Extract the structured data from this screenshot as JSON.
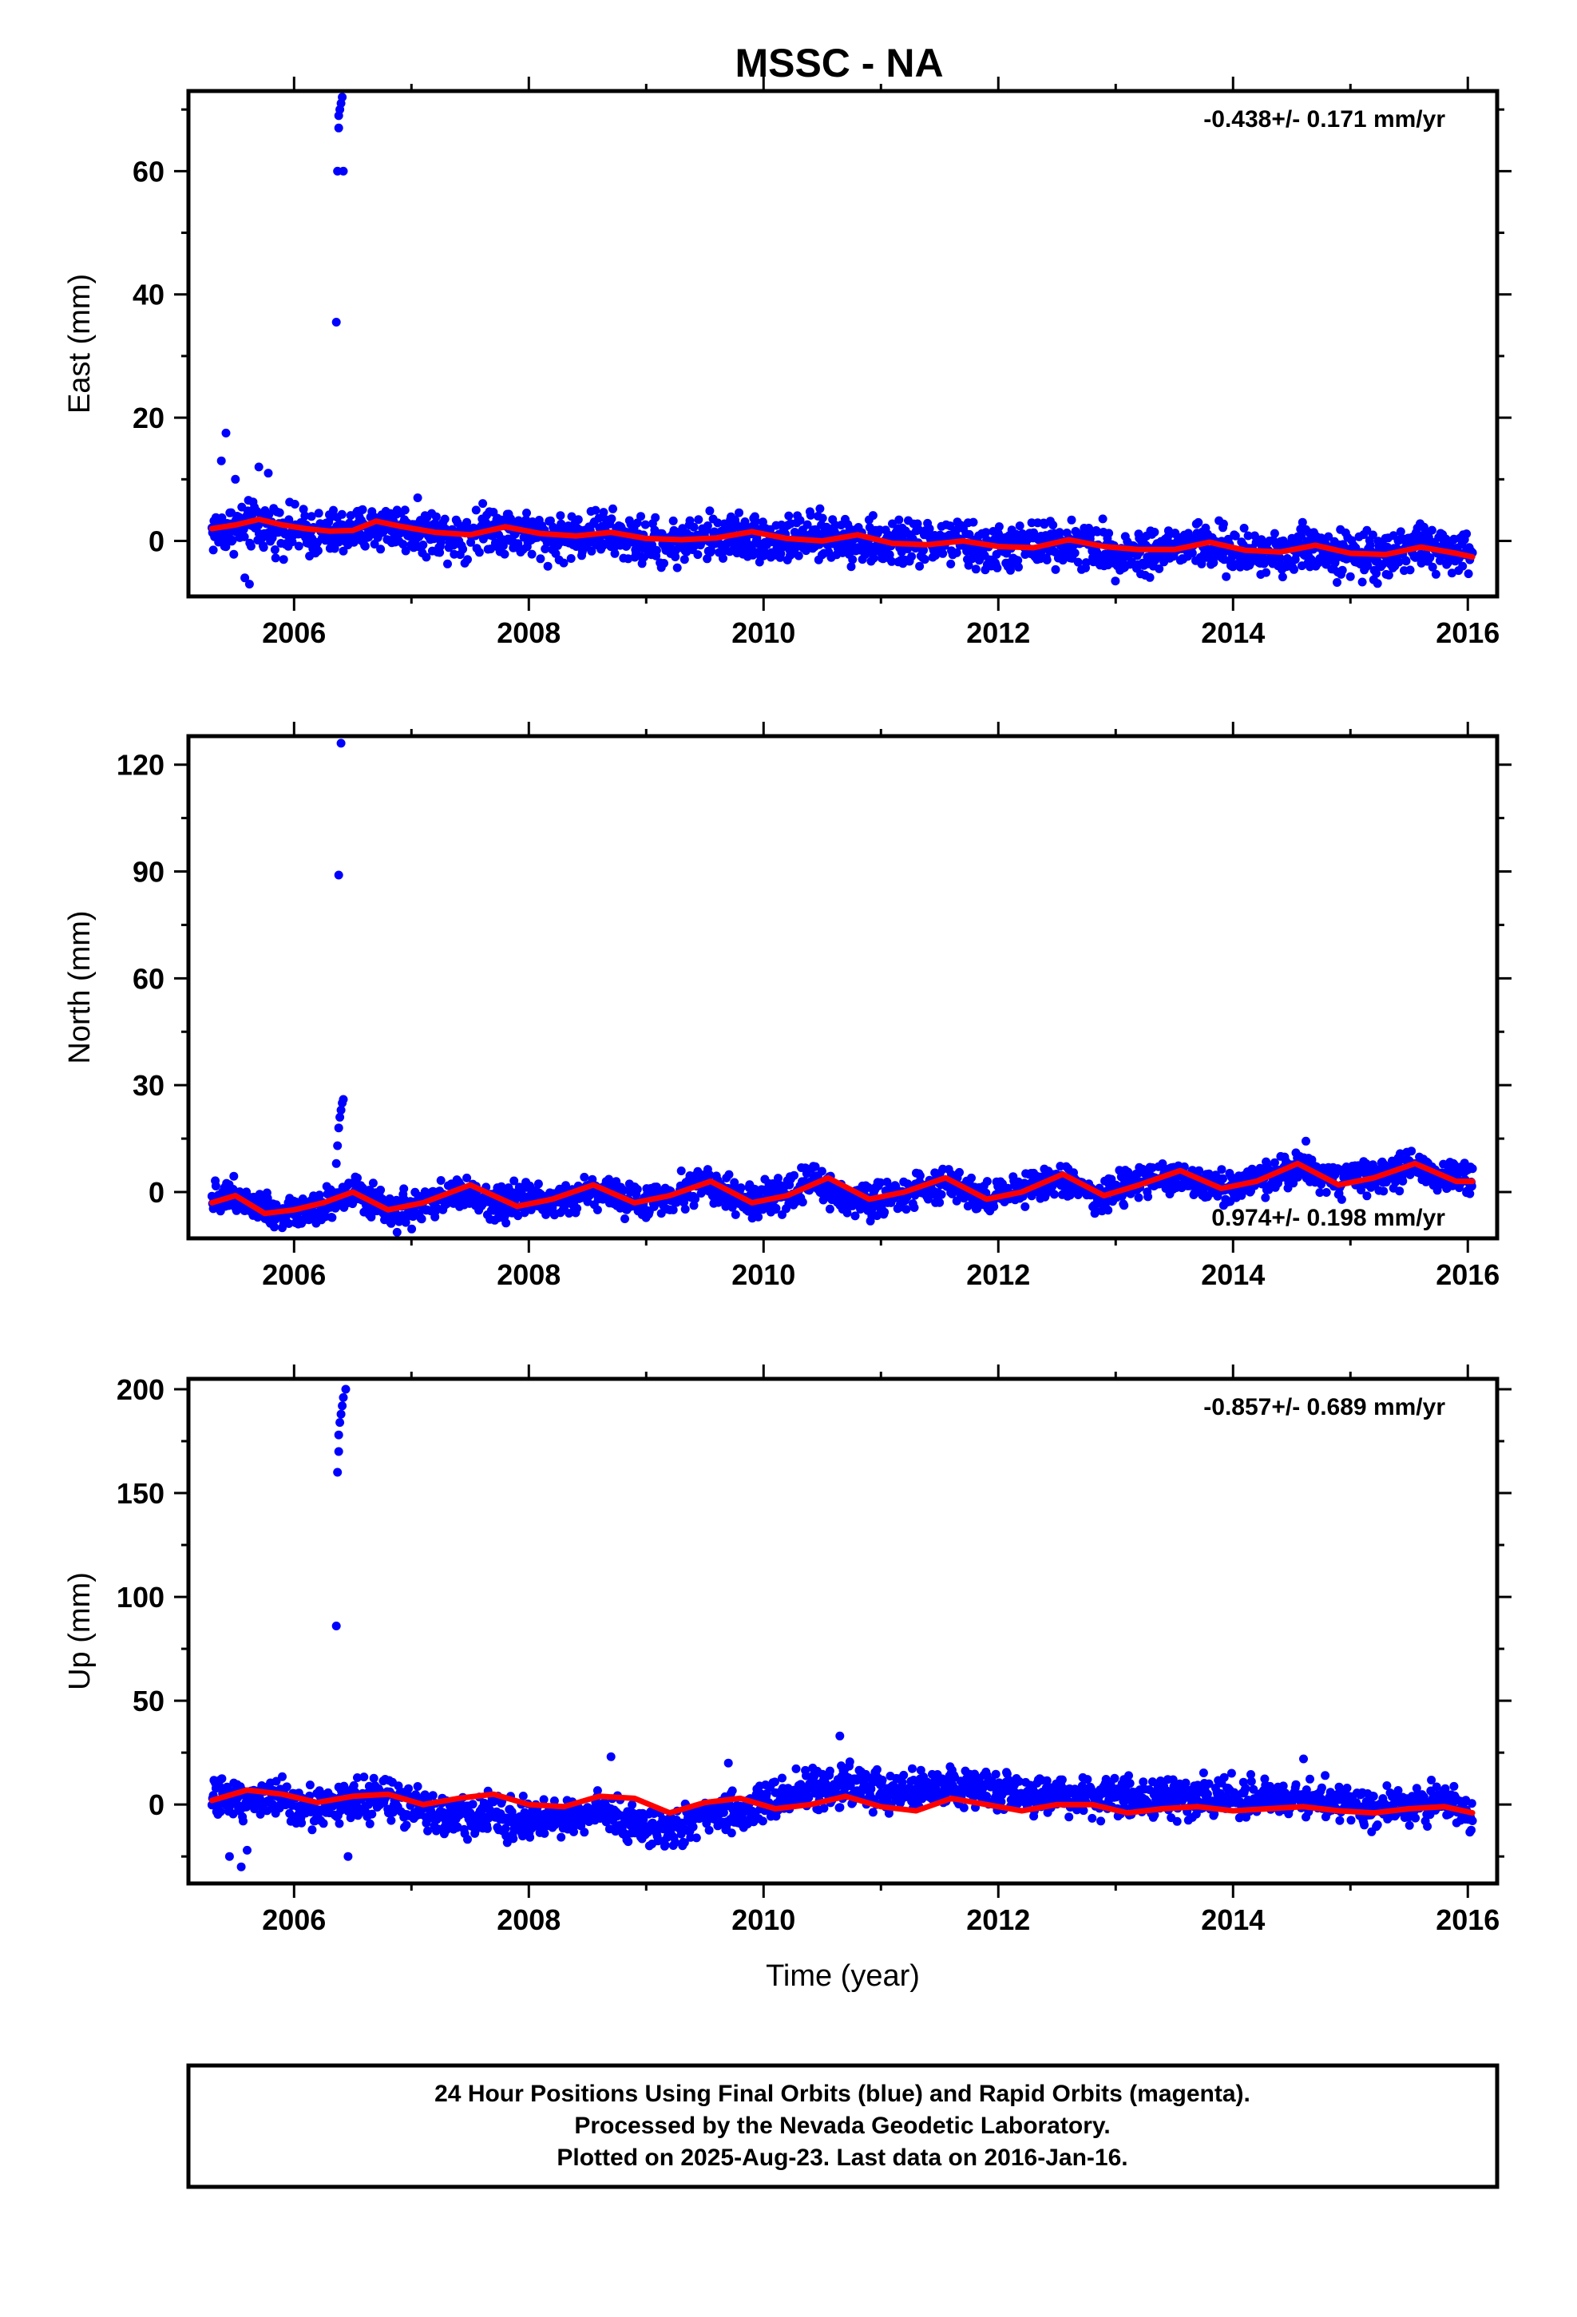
{
  "title": "MSSC - NA",
  "footer": {
    "lines": [
      "24 Hour Positions Using Final Orbits (blue) and Rapid Orbits (magenta).",
      "Processed by the Nevada Geodetic Laboratory.",
      "Plotted on 2025-Aug-23. Last data on 2016-Jan-16."
    ]
  },
  "colors": {
    "final_orbits": "#0000ff",
    "model_fit": "#ff0000",
    "frame": "#000000"
  },
  "chart_data": [
    {
      "id": "east",
      "type": "scatter",
      "ylabel": "East (mm)",
      "xlabel": "",
      "rate": "-0.438+/- 0.171 mm/yr",
      "rate_position": "top-right",
      "xlim": [
        2005.1,
        2016.25
      ],
      "ylim": [
        -9,
        73
      ],
      "x_ticks": [
        2006,
        2008,
        2010,
        2012,
        2014,
        2016
      ],
      "y_ticks": [
        0,
        20,
        40,
        60
      ],
      "grid": false,
      "series": [
        {
          "kind": "points",
          "color": "#0000ff",
          "x": [
            2005.3,
            2005.6,
            2005.9,
            2006.2,
            2006.5,
            2006.8,
            2007.1,
            2007.4,
            2007.7,
            2008.0,
            2008.3,
            2008.6,
            2008.9,
            2009.2,
            2009.5,
            2009.8,
            2010.1,
            2010.4,
            2010.7,
            2011.0,
            2011.3,
            2011.6,
            2011.9,
            2012.2,
            2012.5,
            2012.8,
            2013.1,
            2013.4,
            2013.7,
            2014.0,
            2014.3,
            2014.6,
            2014.9,
            2015.2,
            2015.5,
            2015.8,
            2016.04
          ],
          "y": [
            1.5,
            2.5,
            2.0,
            1.0,
            1.5,
            2.5,
            1.5,
            1.0,
            2.5,
            1.0,
            0.5,
            1.5,
            0.0,
            -0.5,
            0.5,
            1.0,
            0.0,
            0.5,
            0.5,
            -0.5,
            -0.5,
            0.0,
            -1.5,
            -1.0,
            0.0,
            -1.0,
            -2.0,
            -1.5,
            -0.5,
            -2.0,
            -2.0,
            -1.0,
            -2.0,
            -2.5,
            -1.0,
            -1.5,
            -3.0
          ],
          "spread": 5.5
        },
        {
          "kind": "outliers",
          "color": "#0000ff",
          "x": [
            2005.38,
            2005.42,
            2005.5,
            2005.58,
            2005.62,
            2005.7,
            2005.78,
            2006.36,
            2006.37,
            2006.38,
            2006.38,
            2006.39,
            2006.4,
            2006.41,
            2006.42
          ],
          "y": [
            13,
            17.5,
            10,
            -6,
            -7,
            12,
            11,
            35.5,
            60,
            67,
            69,
            70,
            71,
            72,
            60
          ]
        },
        {
          "kind": "line",
          "color": "#ff0000",
          "x": [
            2005.3,
            2005.5,
            2005.7,
            2005.9,
            2006.1,
            2006.3,
            2006.5,
            2006.7,
            2006.9,
            2007.2,
            2007.5,
            2007.8,
            2008.1,
            2008.4,
            2008.7,
            2009.0,
            2009.3,
            2009.6,
            2009.9,
            2010.2,
            2010.5,
            2010.8,
            2011.1,
            2011.4,
            2011.7,
            2012.0,
            2012.3,
            2012.6,
            2012.9,
            2013.2,
            2013.5,
            2013.8,
            2014.1,
            2014.4,
            2014.7,
            2015.0,
            2015.3,
            2015.6,
            2015.9,
            2016.04
          ],
          "y": [
            2.0,
            2.6,
            3.5,
            2.6,
            2.0,
            1.6,
            1.7,
            3.2,
            2.4,
            1.4,
            1.0,
            2.3,
            1.2,
            0.8,
            1.4,
            0.4,
            0.2,
            0.5,
            1.5,
            0.4,
            0.0,
            1.0,
            -0.4,
            -0.6,
            0.0,
            -0.9,
            -1.1,
            0.2,
            -0.9,
            -1.4,
            -1.4,
            -0.2,
            -1.5,
            -1.8,
            -0.7,
            -2.0,
            -2.2,
            -1.0,
            -2.0,
            -2.6
          ]
        }
      ]
    },
    {
      "id": "north",
      "type": "scatter",
      "ylabel": "North (mm)",
      "xlabel": "",
      "rate": "0.974+/- 0.198 mm/yr",
      "rate_position": "bottom-right",
      "xlim": [
        2005.1,
        2016.25
      ],
      "ylim": [
        -13,
        128
      ],
      "x_ticks": [
        2006,
        2008,
        2010,
        2012,
        2014,
        2016
      ],
      "y_ticks": [
        0,
        30,
        60,
        90,
        120
      ],
      "grid": false,
      "series": [
        {
          "kind": "points",
          "color": "#0000ff",
          "x": [
            2005.3,
            2005.6,
            2005.9,
            2006.2,
            2006.5,
            2006.8,
            2007.1,
            2007.4,
            2007.7,
            2008.0,
            2008.3,
            2008.6,
            2008.9,
            2009.2,
            2009.5,
            2009.8,
            2010.1,
            2010.4,
            2010.7,
            2011.0,
            2011.3,
            2011.6,
            2011.9,
            2012.2,
            2012.5,
            2012.8,
            2013.1,
            2013.4,
            2013.7,
            2014.0,
            2014.3,
            2014.6,
            2014.9,
            2015.2,
            2015.5,
            2015.8,
            2016.04
          ],
          "y": [
            -1,
            -2,
            -6,
            -4,
            0,
            -6,
            -4,
            0,
            -3,
            -2,
            -2,
            1,
            -3,
            -1,
            3,
            -3,
            -2,
            3,
            -2,
            -2,
            1,
            2,
            -2,
            1,
            4,
            -1,
            1,
            5,
            2,
            1,
            4,
            8,
            3,
            4,
            8,
            4,
            4
          ],
          "spread": 7
        },
        {
          "kind": "outliers",
          "color": "#0000ff",
          "x": [
            2006.36,
            2006.37,
            2006.38,
            2006.39,
            2006.4,
            2006.41,
            2006.42,
            2006.38,
            2006.4
          ],
          "y": [
            8,
            13,
            18,
            21,
            23,
            25,
            26,
            89,
            126
          ]
        },
        {
          "kind": "line",
          "color": "#ff0000",
          "x": [
            2005.3,
            2005.5,
            2005.75,
            2006.0,
            2006.25,
            2006.5,
            2006.8,
            2007.1,
            2007.5,
            2007.9,
            2008.2,
            2008.55,
            2008.9,
            2009.2,
            2009.55,
            2009.9,
            2010.2,
            2010.55,
            2010.9,
            2011.2,
            2011.55,
            2011.9,
            2012.2,
            2012.55,
            2012.9,
            2013.2,
            2013.55,
            2013.9,
            2014.2,
            2014.55,
            2014.9,
            2015.2,
            2015.55,
            2015.9,
            2016.04
          ],
          "y": [
            -3,
            -1,
            -6,
            -5,
            -3,
            0,
            -5,
            -3,
            2,
            -4,
            -2,
            2,
            -3,
            -1,
            3,
            -3,
            -1,
            4,
            -2,
            0,
            4,
            -2,
            0,
            5,
            -1,
            2,
            6,
            1,
            3,
            8,
            2,
            4,
            8,
            3,
            3
          ]
        }
      ]
    },
    {
      "id": "up",
      "type": "scatter",
      "ylabel": "Up (mm)",
      "xlabel": "Time (year)",
      "rate": "-0.857+/- 0.689 mm/yr",
      "rate_position": "top-right",
      "xlim": [
        2005.1,
        2016.25
      ],
      "ylim": [
        -38,
        205
      ],
      "x_ticks": [
        2006,
        2008,
        2010,
        2012,
        2014,
        2016
      ],
      "y_ticks": [
        0,
        50,
        100,
        150,
        200
      ],
      "grid": false,
      "series": [
        {
          "kind": "points",
          "color": "#0000ff",
          "x": [
            2005.3,
            2005.6,
            2005.9,
            2006.2,
            2006.5,
            2006.8,
            2007.1,
            2007.4,
            2007.7,
            2008.0,
            2008.3,
            2008.6,
            2008.9,
            2009.2,
            2009.5,
            2009.8,
            2010.1,
            2010.4,
            2010.7,
            2011.0,
            2011.3,
            2011.6,
            2011.9,
            2012.2,
            2012.5,
            2012.8,
            2013.1,
            2013.4,
            2013.7,
            2014.0,
            2014.3,
            2014.6,
            2014.9,
            2015.2,
            2015.5,
            2015.8,
            2016.04
          ],
          "y": [
            2,
            4,
            2,
            -2,
            2,
            3,
            -4,
            -6,
            -5,
            -8,
            -6,
            -3,
            -10,
            -12,
            -6,
            -4,
            2,
            8,
            10,
            6,
            7,
            9,
            7,
            5,
            5,
            4,
            2,
            3,
            4,
            3,
            4,
            3,
            2,
            -2,
            0,
            2,
            -6
          ],
          "spread": 14
        },
        {
          "kind": "outliers",
          "color": "#0000ff",
          "x": [
            2005.45,
            2005.55,
            2005.6,
            2006.36,
            2006.37,
            2006.38,
            2006.38,
            2006.39,
            2006.4,
            2006.41,
            2006.42,
            2006.44,
            2006.46,
            2008.7,
            2010.65,
            2009.7,
            2014.6
          ],
          "y": [
            -25,
            -30,
            -22,
            86,
            160,
            170,
            178,
            184,
            188,
            192,
            196,
            200,
            -25,
            23,
            33,
            20,
            22
          ]
        },
        {
          "kind": "line",
          "color": "#ff0000",
          "x": [
            2005.3,
            2005.6,
            2005.9,
            2006.2,
            2006.5,
            2006.8,
            2007.1,
            2007.4,
            2007.7,
            2008.0,
            2008.3,
            2008.6,
            2008.9,
            2009.2,
            2009.5,
            2009.8,
            2010.1,
            2010.4,
            2010.7,
            2011.0,
            2011.3,
            2011.6,
            2011.9,
            2012.2,
            2012.5,
            2012.8,
            2013.1,
            2013.4,
            2013.7,
            2014.0,
            2014.3,
            2014.6,
            2014.9,
            2015.2,
            2015.5,
            2015.8,
            2016.04
          ],
          "y": [
            2,
            7,
            5,
            1,
            4,
            5,
            0,
            3,
            5,
            0,
            -1,
            4,
            3,
            -4,
            1,
            3,
            -2,
            0,
            4,
            -1,
            -3,
            3,
            0,
            -3,
            0,
            0,
            -4,
            -2,
            -1,
            -3,
            -2,
            -1,
            -3,
            -4,
            -2,
            -1,
            -4
          ]
        }
      ]
    }
  ]
}
